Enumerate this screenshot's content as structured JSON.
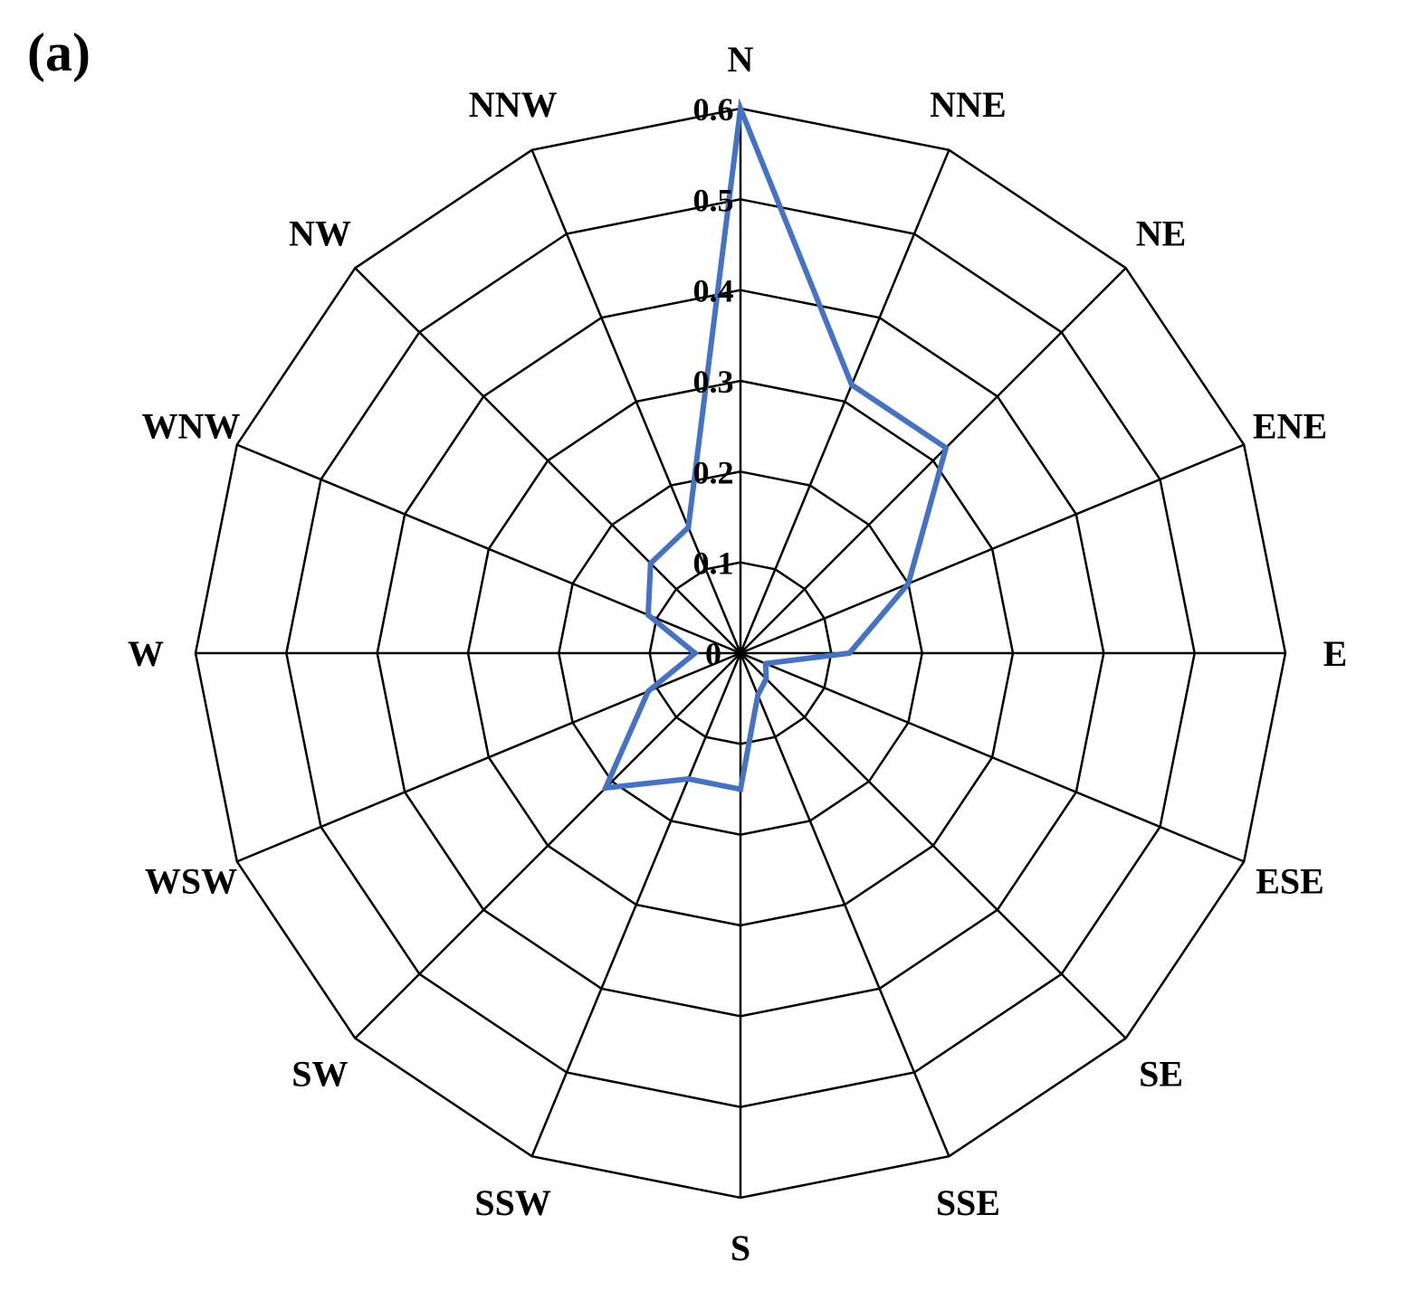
{
  "panel_label": "(a)",
  "chart_data": {
    "type": "radar",
    "directions": [
      "N",
      "NNE",
      "NE",
      "ENE",
      "E",
      "ESE",
      "SE",
      "SSE",
      "S",
      "SSW",
      "SW",
      "WSW",
      "W",
      "WNW",
      "NW",
      "NNW"
    ],
    "rlim": [
      0,
      0.6
    ],
    "ticks": [
      "0",
      "0.1",
      "0.2",
      "0.3",
      "0.4",
      "0.5",
      "0.6"
    ],
    "grid": true,
    "series": [
      {
        "color": "#4472C4",
        "values": [
          0.6,
          0.32,
          0.32,
          0.2,
          0.12,
          0.03,
          0.04,
          0.05,
          0.15,
          0.15,
          0.21,
          0.11,
          0.05,
          0.11,
          0.14,
          0.15
        ]
      }
    ]
  }
}
